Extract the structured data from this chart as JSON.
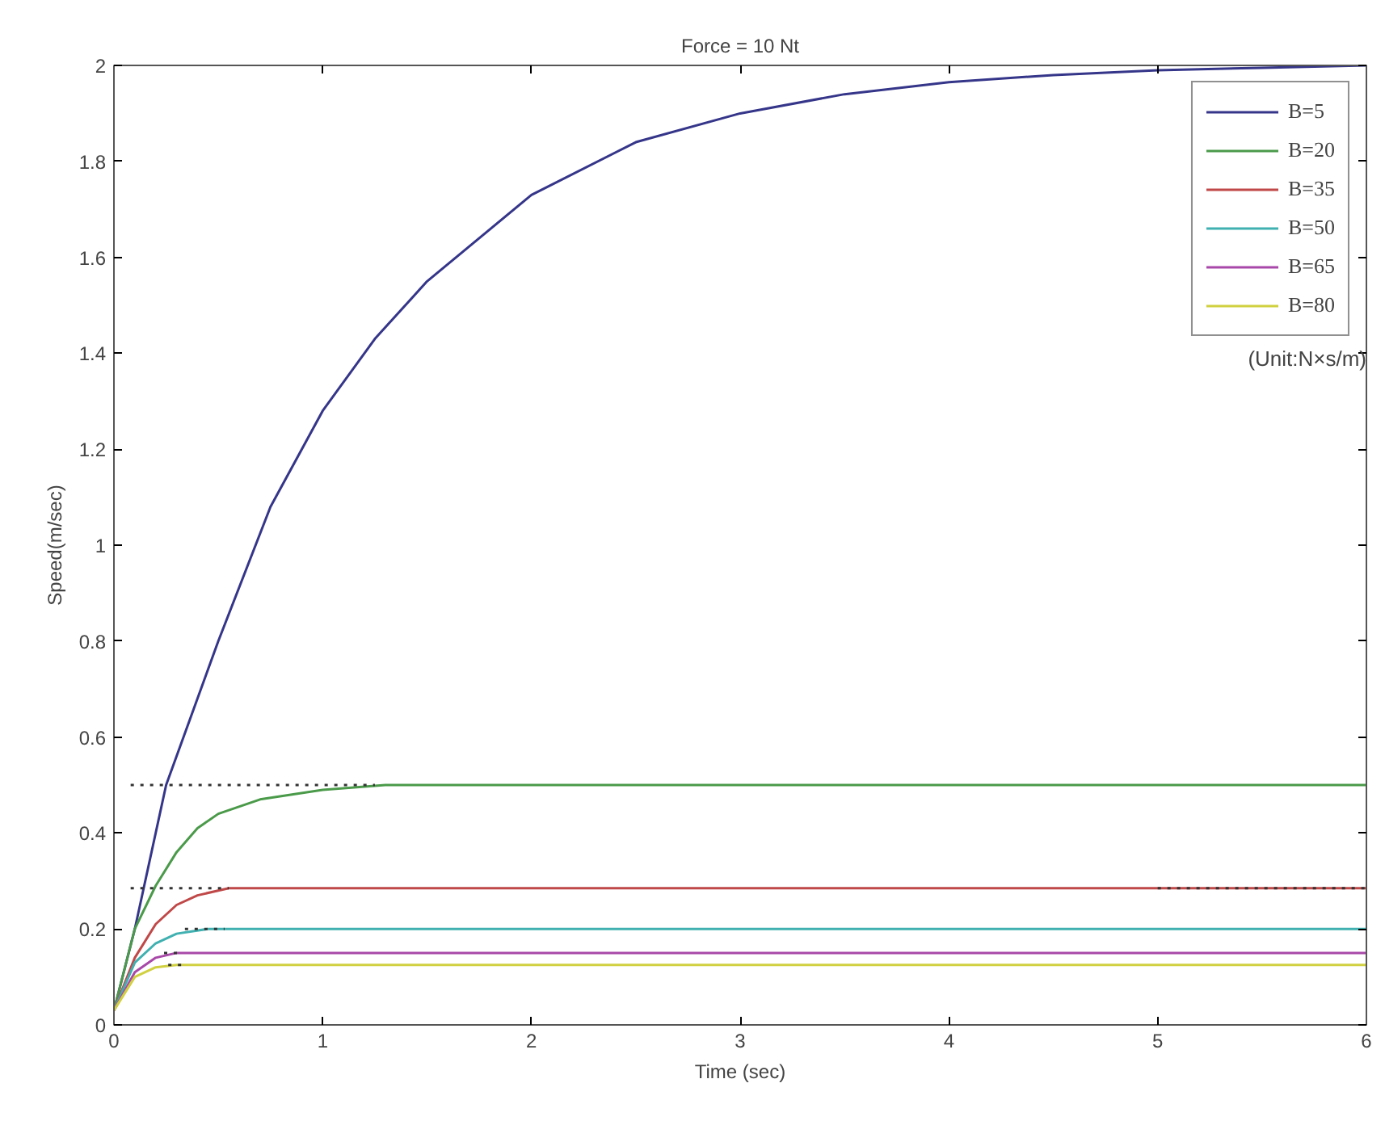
{
  "chart_data": {
    "type": "line",
    "title": "Force = 10 Nt",
    "xlabel": "Time (sec)",
    "ylabel": "Speed(m/sec)",
    "xlim": [
      0,
      6
    ],
    "ylim": [
      0,
      2
    ],
    "xticks": [
      0,
      1,
      2,
      3,
      4,
      5,
      6
    ],
    "yticks": [
      0,
      0.2,
      0.4,
      0.6,
      0.8,
      1,
      1.2,
      1.4,
      1.6,
      1.8,
      2
    ],
    "grid": false,
    "legend": "top right",
    "line_style": "solid",
    "marker": "none",
    "annotations": [
      "(Unit:N×s/m)"
    ],
    "series": [
      {
        "name": "B=5",
        "color": "#35358a",
        "x": [
          0,
          0.1,
          0.25,
          0.5,
          0.75,
          1,
          1.25,
          1.5,
          2,
          2.5,
          3,
          3.5,
          4,
          4.5,
          5,
          5.5,
          6
        ],
        "values": [
          0.03,
          0.2,
          0.5,
          0.8,
          1.08,
          1.28,
          1.43,
          1.55,
          1.73,
          1.84,
          1.9,
          1.94,
          1.965,
          1.98,
          1.99,
          1.995,
          2.0
        ]
      },
      {
        "name": "B=20",
        "color": "#4a9a4a",
        "x": [
          0,
          0.1,
          0.2,
          0.3,
          0.4,
          0.5,
          0.7,
          1,
          1.3,
          6
        ],
        "values": [
          0.03,
          0.2,
          0.29,
          0.36,
          0.41,
          0.44,
          0.47,
          0.49,
          0.5,
          0.5
        ]
      },
      {
        "name": "B=35",
        "color": "#c04848",
        "x": [
          0,
          0.1,
          0.2,
          0.3,
          0.4,
          0.55,
          6
        ],
        "values": [
          0.03,
          0.14,
          0.21,
          0.25,
          0.27,
          0.285,
          0.285
        ]
      },
      {
        "name": "B=50",
        "color": "#40b0b0",
        "x": [
          0,
          0.1,
          0.2,
          0.3,
          0.45,
          6
        ],
        "values": [
          0.03,
          0.13,
          0.17,
          0.19,
          0.2,
          0.2
        ]
      },
      {
        "name": "B=65",
        "color": "#a848a8",
        "x": [
          0,
          0.1,
          0.2,
          0.3,
          6
        ],
        "values": [
          0.03,
          0.11,
          0.14,
          0.15,
          0.15
        ]
      },
      {
        "name": "B=80",
        "color": "#d0d040",
        "x": [
          0,
          0.1,
          0.2,
          0.3,
          6
        ],
        "values": [
          0.03,
          0.1,
          0.12,
          0.125,
          0.125
        ]
      },
      {
        "color": "#333333",
        "line_style": "dotted",
        "x": [
          0.08,
          1.25,
          null,
          0.08,
          0.55,
          null,
          5.0,
          6.0,
          null,
          0.34,
          0.53,
          null,
          0.24,
          0.31,
          null,
          0.26,
          0.33
        ],
        "values": [
          0.5,
          0.5,
          null,
          0.285,
          0.285,
          null,
          0.285,
          0.285,
          null,
          0.2,
          0.2,
          null,
          0.15,
          0.15,
          null,
          0.125,
          0.125
        ]
      }
    ]
  }
}
